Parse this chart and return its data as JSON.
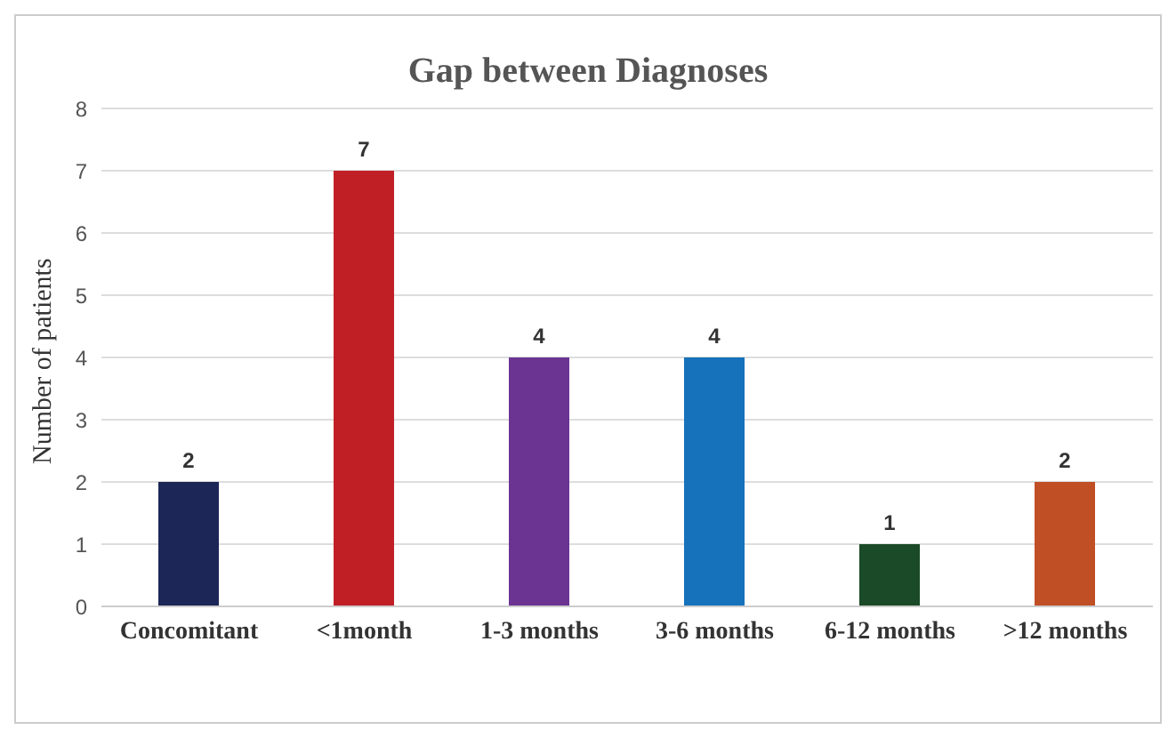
{
  "chart_data": {
    "type": "bar",
    "title": "Gap between Diagnoses",
    "ylabel": "Number of patients",
    "categories": [
      "Concomitant",
      "<1month",
      "1-3 months",
      "3-6 months",
      "6-12 months",
      ">12 months"
    ],
    "values": [
      2,
      7,
      4,
      4,
      1,
      2
    ],
    "colors": [
      "#1c2657",
      "#c11f26",
      "#6b3493",
      "#1572bb",
      "#1a4a27",
      "#c04f26"
    ],
    "ylim": [
      0,
      8
    ],
    "yticks": [
      0,
      1,
      2,
      3,
      4,
      5,
      6,
      7,
      8
    ],
    "grid": "y",
    "data_labels": true
  }
}
